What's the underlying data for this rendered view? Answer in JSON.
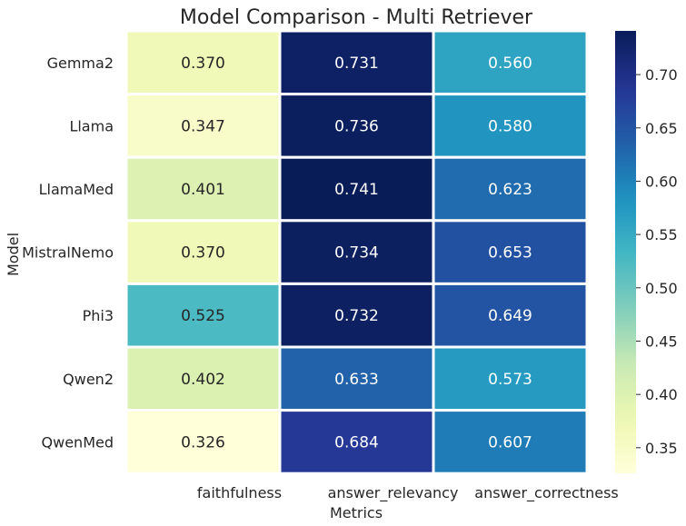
{
  "chart_data": {
    "type": "heatmap",
    "title": "Model Comparison - Multi Retriever",
    "xlabel": "Metrics",
    "ylabel": "Model",
    "rows": [
      "Gemma2",
      "Llama",
      "LlamaMed",
      "MistralNemo",
      "Phi3",
      "Qwen2",
      "QwenMed"
    ],
    "columns": [
      "faithfulness",
      "answer_relevancy",
      "answer_correctness"
    ],
    "values": [
      [
        0.37,
        0.731,
        0.56
      ],
      [
        0.347,
        0.736,
        0.58
      ],
      [
        0.401,
        0.741,
        0.623
      ],
      [
        0.37,
        0.734,
        0.653
      ],
      [
        0.525,
        0.732,
        0.649
      ],
      [
        0.402,
        0.633,
        0.573
      ],
      [
        0.326,
        0.684,
        0.607
      ]
    ],
    "colorbar": {
      "colormap": "YlGnBu",
      "vmin": 0.326,
      "vmax": 0.741,
      "ticks": [
        0.35,
        0.4,
        0.45,
        0.5,
        0.55,
        0.6,
        0.65,
        0.7
      ]
    }
  }
}
